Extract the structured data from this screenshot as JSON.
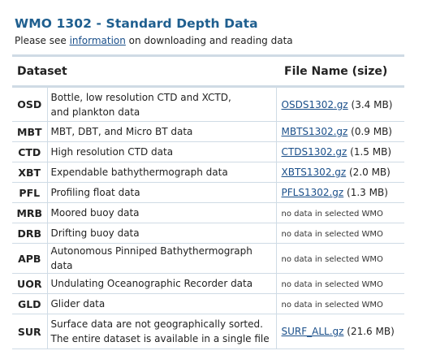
{
  "header": {
    "title": "WMO 1302 - Standard Depth Data",
    "intro_prefix": "Please see ",
    "intro_link": "information",
    "intro_suffix": " on downloading and reading data"
  },
  "table": {
    "columns": {
      "dataset": "Dataset",
      "file": "File Name (size)"
    },
    "rows": [
      {
        "code": "OSD",
        "desc_lines": [
          "Bottle, low resolution CTD and XCTD,",
          "and plankton data"
        ],
        "file": "OSDS1302.gz",
        "size": " (3.4 MB)"
      },
      {
        "code": "MBT",
        "desc_lines": [
          "MBT, DBT, and Micro BT data"
        ],
        "file": "MBTS1302.gz",
        "size": " (0.9 MB)"
      },
      {
        "code": "CTD",
        "desc_lines": [
          "High resolution CTD data"
        ],
        "file": "CTDS1302.gz",
        "size": " (1.5 MB)"
      },
      {
        "code": "XBT",
        "desc_lines": [
          "Expendable bathythermograph data"
        ],
        "file": "XBTS1302.gz",
        "size": " (2.0 MB)"
      },
      {
        "code": "PFL",
        "desc_lines": [
          "Profiling float data"
        ],
        "file": "PFLS1302.gz",
        "size": " (1.3 MB)"
      },
      {
        "code": "MRB",
        "desc_lines": [
          "Moored buoy data"
        ],
        "nodata": "no data in selected WMO"
      },
      {
        "code": "DRB",
        "desc_lines": [
          "Drifting buoy data"
        ],
        "nodata": "no data in selected WMO"
      },
      {
        "code": "APB",
        "desc_lines": [
          "Autonomous Pinniped Bathythermograph data"
        ],
        "nodata": "no data in selected WMO"
      },
      {
        "code": "UOR",
        "desc_lines": [
          "Undulating Oceanographic Recorder data"
        ],
        "nodata": "no data in selected WMO"
      },
      {
        "code": "GLD",
        "desc_lines": [
          "Glider data"
        ],
        "nodata": "no data in selected WMO"
      },
      {
        "code": "SUR",
        "desc_lines": [
          "Surface data are not geographically sorted.",
          "The entire dataset is available in a single file"
        ],
        "file": "SURF_ALL.gz",
        "size": " (21.6 MB)"
      }
    ]
  }
}
